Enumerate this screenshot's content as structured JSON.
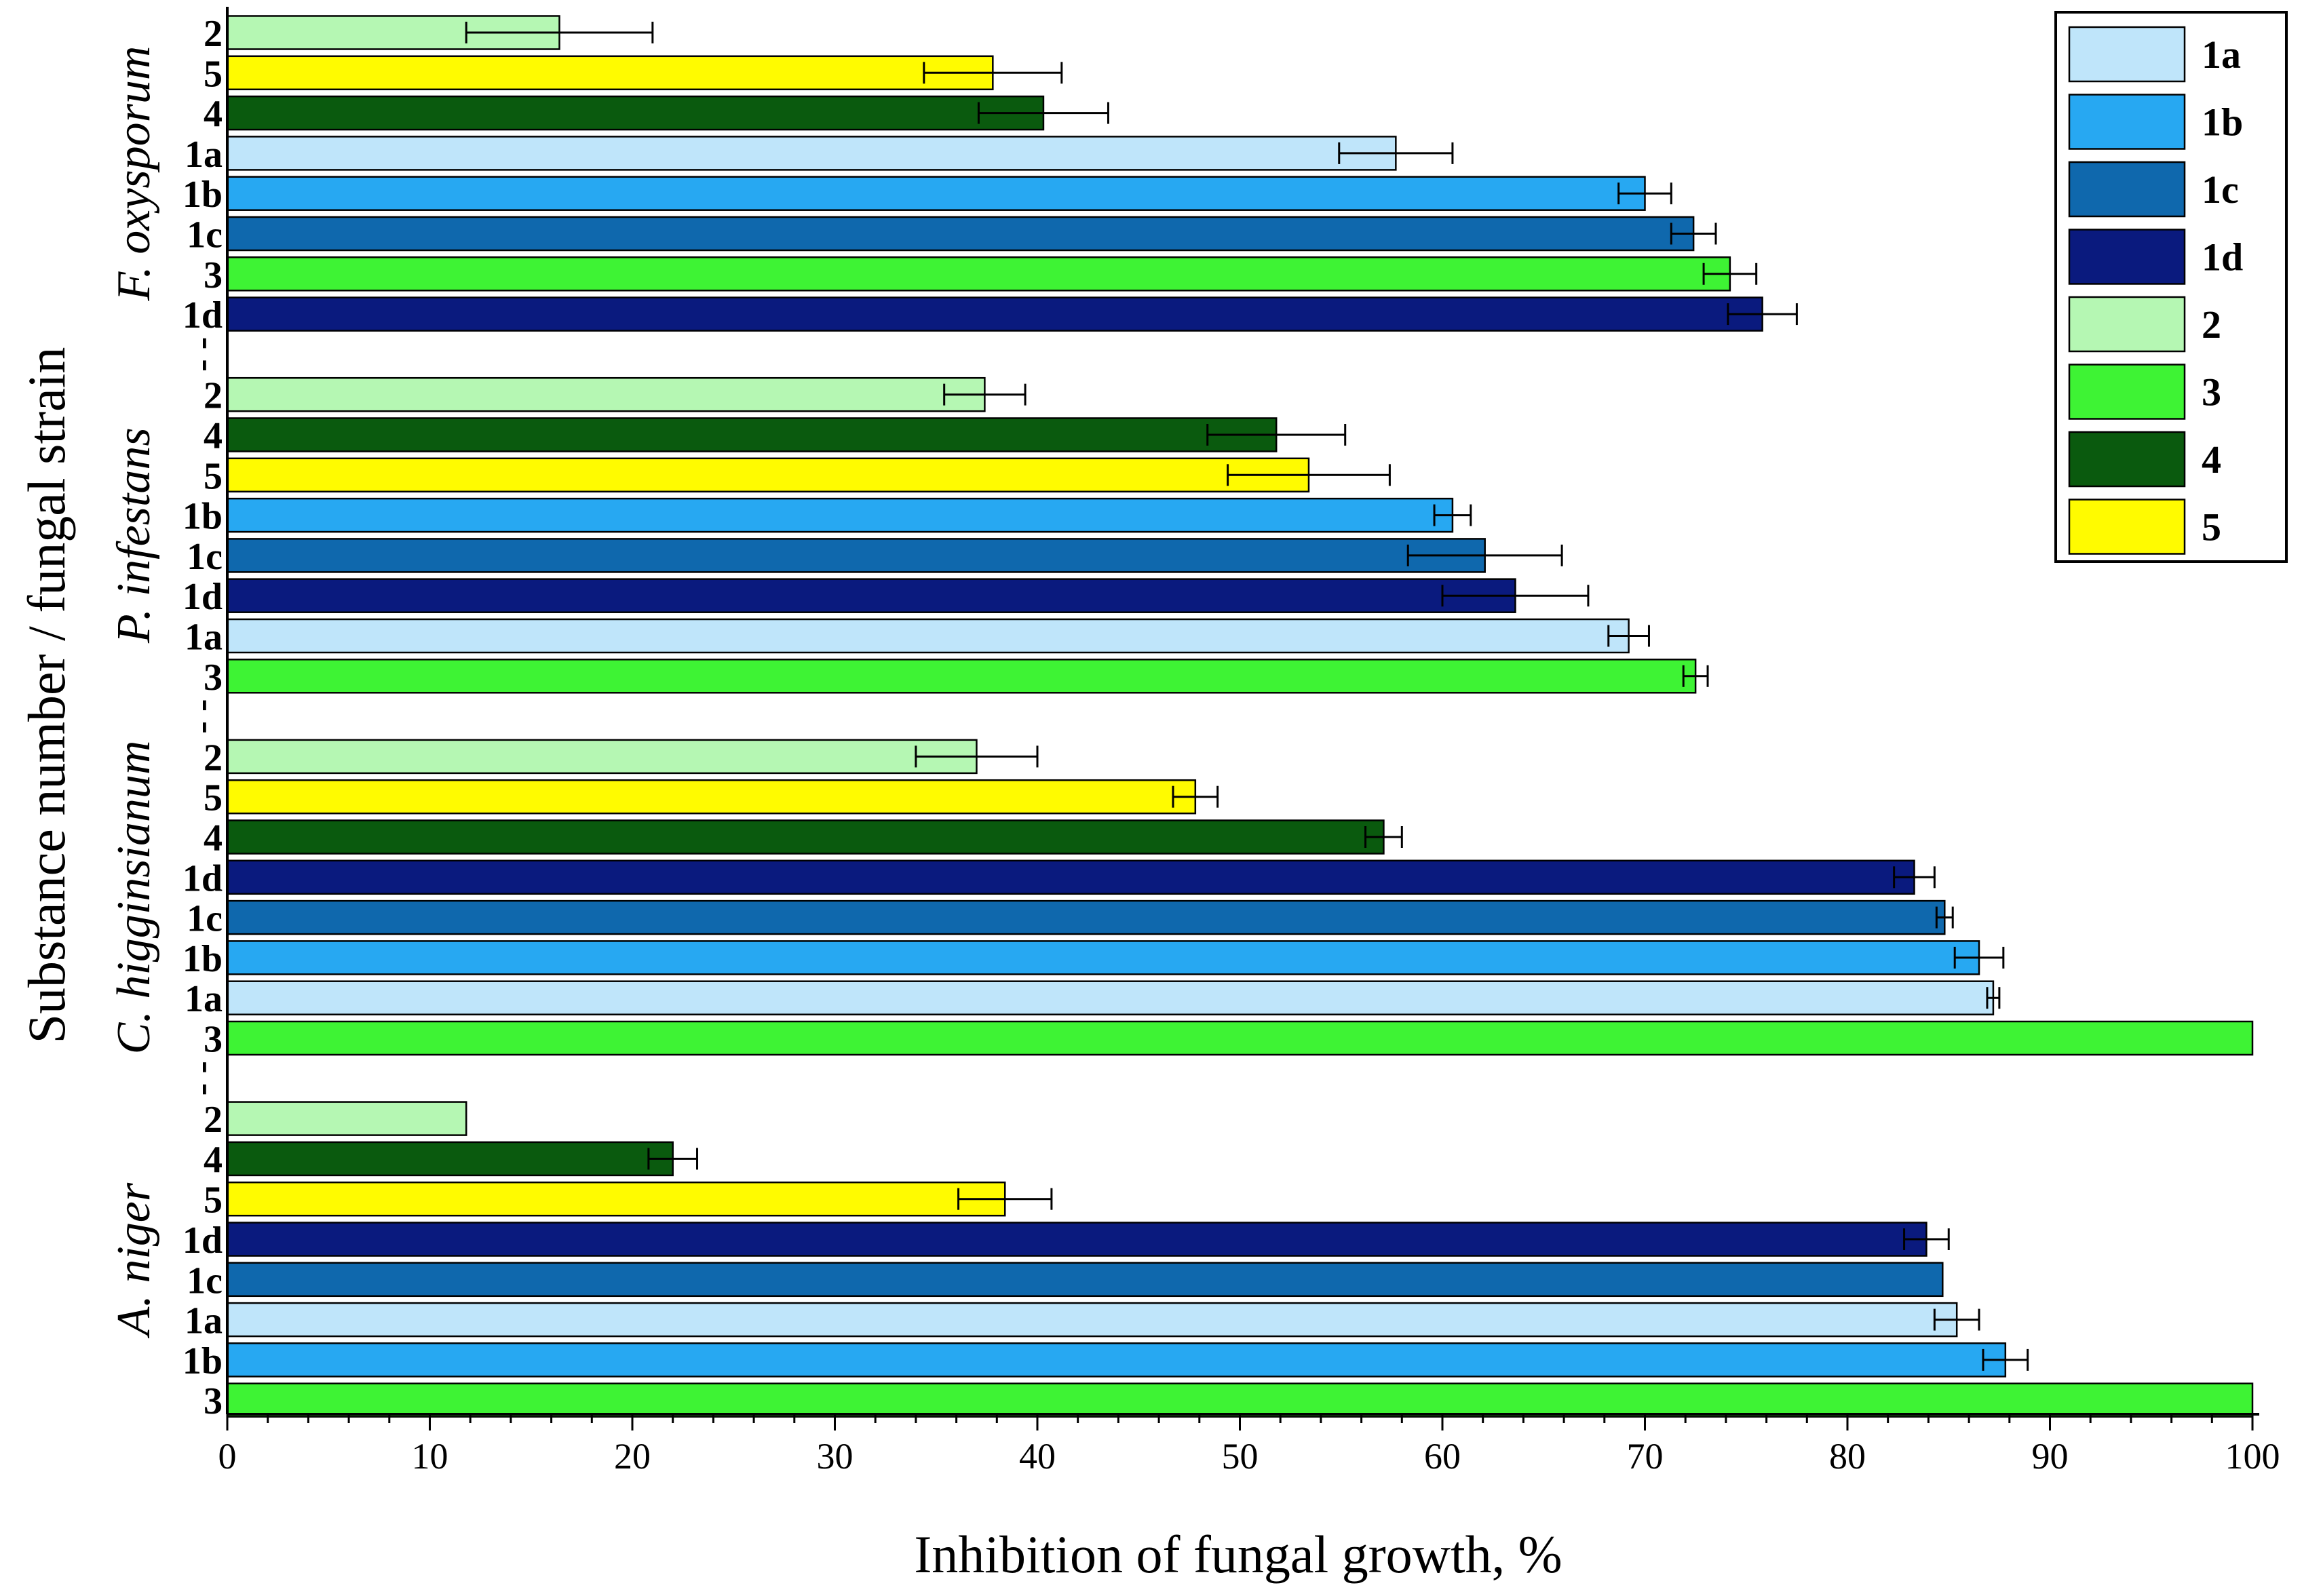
{
  "chart_data": {
    "type": "bar",
    "orientation": "horizontal",
    "xlabel": "Inhibition of fungal growth, %",
    "ylabel": "Substance number / fungal strain",
    "xlim": [
      0,
      100
    ],
    "xticks": [
      "0",
      "10",
      "20",
      "30",
      "40",
      "50",
      "60",
      "70",
      "80",
      "90",
      "100"
    ],
    "separator": "- -",
    "colors": {
      "1a": "#bfe5fa",
      "1b": "#27a8f2",
      "1c": "#0f68ad",
      "1d": "#0a1a7e",
      "2": "#b5f7b3",
      "3": "#3ef334",
      "4": "#0a5a0e",
      "5": "#fffb00"
    },
    "legend": [
      "1a",
      "1b",
      "1c",
      "1d",
      "2",
      "3",
      "4",
      "5"
    ],
    "groups": [
      {
        "name": "F. oxysporum",
        "bars": [
          {
            "label": "2",
            "value": 16.4,
            "err": 4.6
          },
          {
            "label": "5",
            "value": 37.8,
            "err": 3.4
          },
          {
            "label": "4",
            "value": 40.3,
            "err": 3.2
          },
          {
            "label": "1a",
            "value": 57.7,
            "err": 2.8
          },
          {
            "label": "1b",
            "value": 70.0,
            "err": 1.3
          },
          {
            "label": "1c",
            "value": 72.4,
            "err": 1.1
          },
          {
            "label": "3",
            "value": 74.2,
            "err": 1.3
          },
          {
            "label": "1d",
            "value": 75.8,
            "err": 1.7
          }
        ]
      },
      {
        "name": "P. infestans",
        "bars": [
          {
            "label": "2",
            "value": 37.4,
            "err": 2.0
          },
          {
            "label": "4",
            "value": 51.8,
            "err": 3.4
          },
          {
            "label": "5",
            "value": 53.4,
            "err": 4.0
          },
          {
            "label": "1b",
            "value": 60.5,
            "err": 0.9
          },
          {
            "label": "1c",
            "value": 62.1,
            "err": 3.8
          },
          {
            "label": "1d",
            "value": 63.6,
            "err": 3.6
          },
          {
            "label": "1a",
            "value": 69.2,
            "err": 1.0
          },
          {
            "label": "3",
            "value": 72.5,
            "err": 0.6
          }
        ]
      },
      {
        "name": "C. higginsianum",
        "bars": [
          {
            "label": "2",
            "value": 37.0,
            "err": 3.0
          },
          {
            "label": "5",
            "value": 47.8,
            "err": 1.1
          },
          {
            "label": "4",
            "value": 57.1,
            "err": 0.9
          },
          {
            "label": "1d",
            "value": 83.3,
            "err": 1.0
          },
          {
            "label": "1c",
            "value": 84.8,
            "err": 0.4
          },
          {
            "label": "1b",
            "value": 86.5,
            "err": 1.2
          },
          {
            "label": "1a",
            "value": 87.2,
            "err": 0.3
          },
          {
            "label": "3",
            "value": 100.0,
            "err": 0
          }
        ]
      },
      {
        "name": "A. niger",
        "bars": [
          {
            "label": "2",
            "value": 11.8,
            "err": 0
          },
          {
            "label": "4",
            "value": 22.0,
            "err": 1.2
          },
          {
            "label": "5",
            "value": 38.4,
            "err": 2.3
          },
          {
            "label": "1d",
            "value": 83.9,
            "err": 1.1
          },
          {
            "label": "1c",
            "value": 84.7,
            "err": 0
          },
          {
            "label": "1a",
            "value": 85.4,
            "err": 1.1
          },
          {
            "label": "1b",
            "value": 87.8,
            "err": 1.1
          },
          {
            "label": "3",
            "value": 100.0,
            "err": 0
          }
        ]
      }
    ]
  }
}
